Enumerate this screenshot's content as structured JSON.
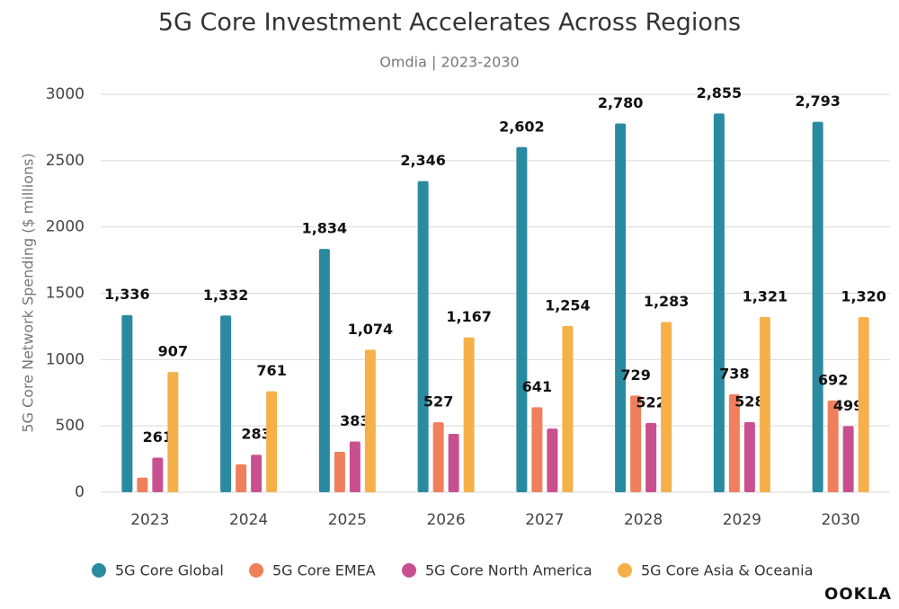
{
  "chart_data": {
    "type": "bar",
    "title": "5G Core Investment Accelerates Across Regions",
    "subtitle": "Omdia | 2023-2030",
    "y_label": "5G Core Network Spending ($ millions)",
    "logo": "OOKLA",
    "categories": [
      "2023",
      "2024",
      "2025",
      "2026",
      "2027",
      "2028",
      "2029",
      "2030"
    ],
    "series": [
      {
        "name": "5G Core Global",
        "color": "#2a8aa0",
        "values": [
          1336,
          1332,
          1834,
          2346,
          2602,
          2780,
          2855,
          2793
        ],
        "value_labels": [
          "1,336",
          "1,332",
          "1,834",
          "2,346",
          "2,602",
          "2,780",
          "2,855",
          "2,793"
        ]
      },
      {
        "name": "5G Core EMEA",
        "color": "#f07f5b",
        "values": [
          110,
          210,
          305,
          527,
          641,
          729,
          738,
          692
        ],
        "value_labels": [
          null,
          null,
          null,
          "527",
          "641",
          "729",
          "738",
          "692"
        ]
      },
      {
        "name": "5G Core North America",
        "color": "#c9508f",
        "values": [
          261,
          283,
          383,
          440,
          480,
          522,
          528,
          499
        ],
        "value_labels": [
          "261",
          "283",
          "383",
          null,
          null,
          "522",
          "528",
          "499"
        ]
      },
      {
        "name": "5G Core Asia & Oceania",
        "color": "#f5b04a",
        "values": [
          907,
          761,
          1074,
          1167,
          1254,
          1283,
          1321,
          1320
        ],
        "value_labels": [
          "907",
          "761",
          "1,074",
          "1,167",
          "1,254",
          "1,283",
          "1,321",
          "1,320"
        ]
      }
    ],
    "ylim": [
      0,
      3000
    ],
    "yticks": [
      0,
      500,
      1000,
      1500,
      2000,
      2500,
      3000
    ],
    "grid": true
  }
}
